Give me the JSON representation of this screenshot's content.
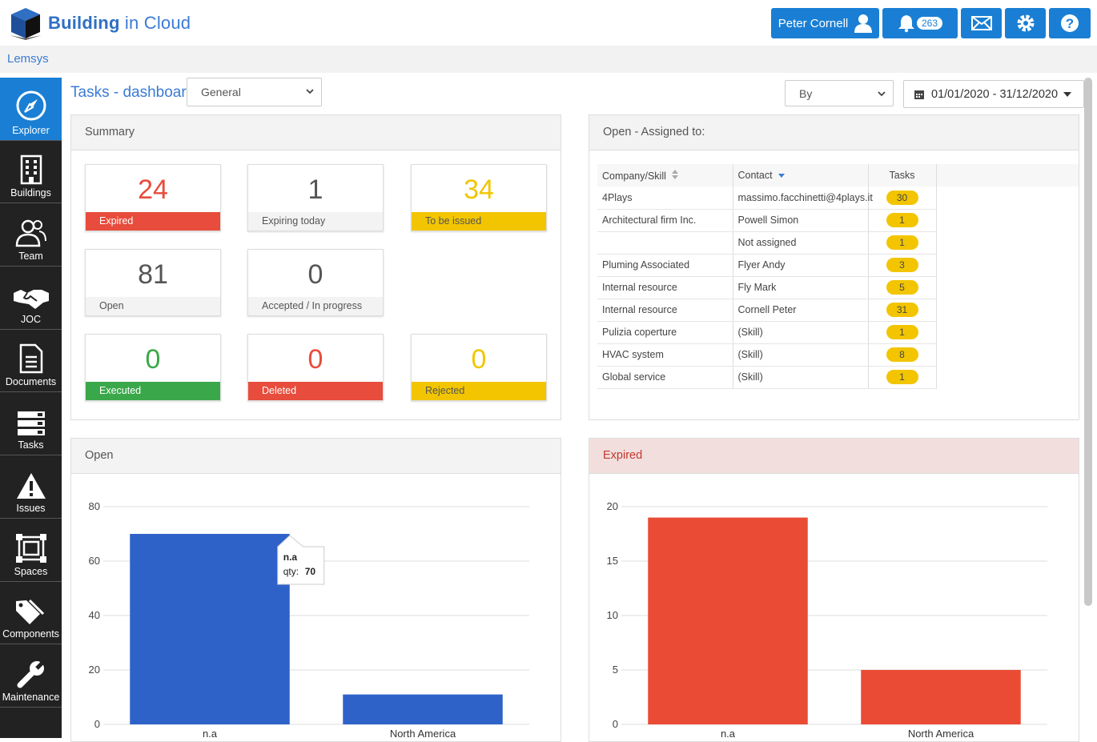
{
  "brand": {
    "name_bold": "Building",
    "name_rest": " in Cloud"
  },
  "header": {
    "user": "Peter Cornell",
    "notifications": "263"
  },
  "breadcrumb": "Lemsys",
  "sidebar": [
    {
      "label": "Explorer",
      "icon": "compass-icon"
    },
    {
      "label": "Buildings",
      "icon": "building-icon"
    },
    {
      "label": "Team",
      "icon": "team-icon"
    },
    {
      "label": "JOC",
      "icon": "handshake-icon"
    },
    {
      "label": "Documents",
      "icon": "document-icon"
    },
    {
      "label": "Tasks",
      "icon": "tasks-icon"
    },
    {
      "label": "Issues",
      "icon": "warning-icon"
    },
    {
      "label": "Spaces",
      "icon": "spaces-icon"
    },
    {
      "label": "Components",
      "icon": "tags-icon"
    },
    {
      "label": "Maintenance",
      "icon": "wrench-icon"
    }
  ],
  "page": {
    "title": "Tasks - dashboard",
    "view_select": "General",
    "by_select": "By",
    "date_range": "01/01/2020 - 31/12/2020"
  },
  "summary": {
    "title": "Summary",
    "cards": [
      {
        "value": "24",
        "label": "Expired",
        "num_color": "#e74c3c",
        "bar_color": "#e74c3c",
        "label_color": "#fff"
      },
      {
        "value": "1",
        "label": "Expiring today",
        "num_color": "#555",
        "bar_color": "#f3f3f3",
        "label_color": "#555"
      },
      {
        "value": "34",
        "label": "To be issued",
        "num_color": "#f2c500",
        "bar_color": "#f2c500",
        "label_color": "#555"
      },
      {
        "value": "81",
        "label": "Open",
        "num_color": "#555",
        "bar_color": "#f3f3f3",
        "label_color": "#555"
      },
      {
        "value": "0",
        "label": "Accepted / In progress",
        "num_color": "#555",
        "bar_color": "#f3f3f3",
        "label_color": "#555"
      },
      {
        "value": "0",
        "label": "Executed",
        "num_color": "#3aa84a",
        "bar_color": "#3aa84a",
        "label_color": "#fff"
      },
      {
        "value": "0",
        "label": "Deleted",
        "num_color": "#e74c3c",
        "bar_color": "#e74c3c",
        "label_color": "#fff"
      },
      {
        "value": "0",
        "label": "Rejected",
        "num_color": "#f2c500",
        "bar_color": "#f2c500",
        "label_color": "#555"
      }
    ]
  },
  "assigned": {
    "title": "Open - Assigned to:",
    "headers": [
      "Company/Skill",
      "Contact",
      "Tasks"
    ],
    "rows": [
      [
        "4Plays",
        "massimo.facchinetti@4plays.it",
        "30"
      ],
      [
        "Architectural firm Inc.",
        "Powell Simon",
        "1"
      ],
      [
        "",
        "Not assigned",
        "1"
      ],
      [
        "Pluming Associated",
        "Flyer Andy",
        "3"
      ],
      [
        "Internal resource",
        "Fly Mark",
        "5"
      ],
      [
        "Internal resource",
        "Cornell Peter",
        "31"
      ],
      [
        "Pulizia coperture",
        "(Skill)",
        "1"
      ],
      [
        "HVAC system",
        "(Skill)",
        "8"
      ],
      [
        "Global service",
        "(Skill)",
        "1"
      ]
    ]
  },
  "chart_data": [
    {
      "type": "bar",
      "panel_title": "Open",
      "categories": [
        "n.a",
        "North America"
      ],
      "values": [
        70,
        11
      ],
      "ylim": [
        0,
        80
      ],
      "yticks": [
        0,
        20,
        40,
        60,
        80
      ],
      "color": "#2f62c9",
      "grid": true,
      "tooltip": {
        "category": "n.a",
        "label": "qty:",
        "value": "70"
      }
    },
    {
      "type": "bar",
      "panel_title": "Expired",
      "categories": [
        "n.a",
        "North America"
      ],
      "values": [
        19,
        5
      ],
      "ylim": [
        0,
        20
      ],
      "yticks": [
        0,
        5,
        10,
        15,
        20
      ],
      "color": "#ea4b35",
      "grid": true
    }
  ]
}
